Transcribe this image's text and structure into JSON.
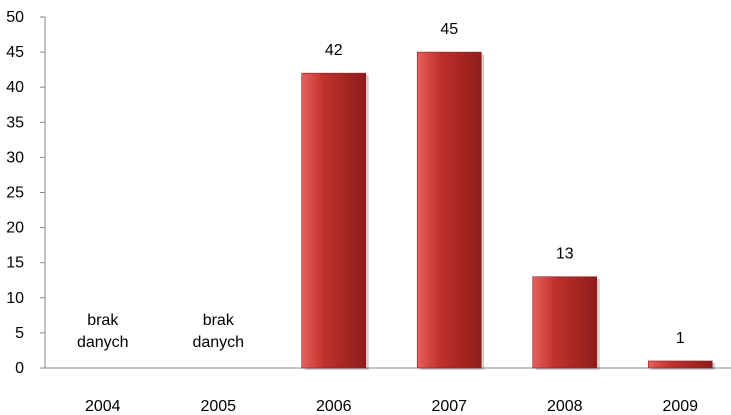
{
  "chart_data": {
    "type": "bar",
    "title": "",
    "xlabel": "",
    "ylabel": "",
    "categories": [
      "2004",
      "2005",
      "2006",
      "2007",
      "2008",
      "2009"
    ],
    "values": [
      null,
      null,
      42,
      45,
      13,
      1
    ],
    "data_labels": [
      "",
      "",
      "42",
      "45",
      "13",
      "1"
    ],
    "missing_note": [
      "brak",
      "danych"
    ],
    "ylim": [
      0,
      50
    ],
    "yticks": [
      0,
      5,
      10,
      15,
      20,
      25,
      30,
      35,
      40,
      45,
      50
    ],
    "grid": false,
    "legend": "none",
    "colors": {
      "bar_light": "#e8605c",
      "bar_mid": "#c0312d",
      "bar_dark": "#8e1c19",
      "axis": "#888888"
    }
  }
}
